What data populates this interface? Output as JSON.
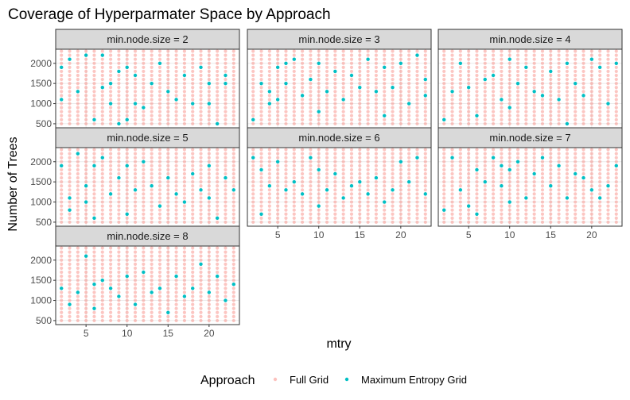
{
  "chart_data": {
    "type": "scatter",
    "title": "Coverage of Hyperparmater Space by Approach",
    "xlabel": "mtry",
    "ylabel": "Number of Trees",
    "xlim": [
      1.3,
      23.7
    ],
    "ylim": [
      400,
      2350
    ],
    "x_ticks": [
      5,
      10,
      15,
      20
    ],
    "y_ticks": [
      500,
      1000,
      1500,
      2000
    ],
    "facet_variable": "min.node.size",
    "facets": [
      {
        "label": "min.node.size = 2",
        "value": 2
      },
      {
        "label": "min.node.size = 3",
        "value": 3
      },
      {
        "label": "min.node.size = 4",
        "value": 4
      },
      {
        "label": "min.node.size = 5",
        "value": 5
      },
      {
        "label": "min.node.size = 6",
        "value": 6
      },
      {
        "label": "min.node.size = 7",
        "value": 7
      },
      {
        "label": "min.node.size = 8",
        "value": 8
      }
    ],
    "legend": {
      "title": "Approach",
      "position": "bottom"
    },
    "series": [
      {
        "name": "Full Grid",
        "color": "#F8766D",
        "grid": {
          "mtry": [
            2,
            23,
            1
          ],
          "trees": [
            500,
            2300,
            100
          ]
        }
      },
      {
        "name": "Maximum Entropy Grid",
        "color": "#00BFC4",
        "points_by_facet": {
          "2": [
            [
              2,
              1900
            ],
            [
              2,
              1100
            ],
            [
              3,
              2100
            ],
            [
              4,
              1300
            ],
            [
              5,
              2200
            ],
            [
              6,
              600
            ],
            [
              7,
              2200
            ],
            [
              7,
              1400
            ],
            [
              8,
              1500
            ],
            [
              8,
              1000
            ],
            [
              9,
              1800
            ],
            [
              9,
              500
            ],
            [
              10,
              1900
            ],
            [
              10,
              600
            ],
            [
              11,
              1700
            ],
            [
              11,
              1000
            ],
            [
              12,
              900
            ],
            [
              13,
              1500
            ],
            [
              14,
              2000
            ],
            [
              15,
              1300
            ],
            [
              16,
              1100
            ],
            [
              17,
              1700
            ],
            [
              18,
              1000
            ],
            [
              19,
              1900
            ],
            [
              20,
              1500
            ],
            [
              20,
              1000
            ],
            [
              21,
              500
            ],
            [
              22,
              1700
            ],
            [
              22,
              1500
            ]
          ],
          "3": [
            [
              2,
              600
            ],
            [
              3,
              1500
            ],
            [
              4,
              1300
            ],
            [
              4,
              1000
            ],
            [
              5,
              1900
            ],
            [
              5,
              1100
            ],
            [
              6,
              2000
            ],
            [
              6,
              1500
            ],
            [
              7,
              2100
            ],
            [
              8,
              1200
            ],
            [
              9,
              1600
            ],
            [
              10,
              2000
            ],
            [
              10,
              800
            ],
            [
              11,
              1300
            ],
            [
              12,
              1800
            ],
            [
              13,
              1100
            ],
            [
              14,
              1700
            ],
            [
              15,
              1400
            ],
            [
              16,
              2100
            ],
            [
              17,
              1300
            ],
            [
              18,
              1900
            ],
            [
              18,
              700
            ],
            [
              19,
              1400
            ],
            [
              20,
              2000
            ],
            [
              21,
              1000
            ],
            [
              22,
              2200
            ],
            [
              23,
              1600
            ],
            [
              23,
              1200
            ]
          ],
          "4": [
            [
              2,
              600
            ],
            [
              3,
              1300
            ],
            [
              4,
              2000
            ],
            [
              5,
              1400
            ],
            [
              6,
              700
            ],
            [
              7,
              1600
            ],
            [
              8,
              1700
            ],
            [
              9,
              1100
            ],
            [
              10,
              2100
            ],
            [
              10,
              900
            ],
            [
              11,
              1500
            ],
            [
              12,
              1900
            ],
            [
              13,
              1300
            ],
            [
              14,
              1200
            ],
            [
              15,
              1800
            ],
            [
              16,
              1100
            ],
            [
              17,
              2000
            ],
            [
              17,
              500
            ],
            [
              18,
              1500
            ],
            [
              19,
              1200
            ],
            [
              20,
              2100
            ],
            [
              21,
              1900
            ],
            [
              22,
              1000
            ],
            [
              23,
              2000
            ]
          ],
          "5": [
            [
              2,
              1900
            ],
            [
              3,
              1100
            ],
            [
              3,
              800
            ],
            [
              4,
              2200
            ],
            [
              5,
              1400
            ],
            [
              5,
              1000
            ],
            [
              6,
              1900
            ],
            [
              6,
              600
            ],
            [
              7,
              2100
            ],
            [
              8,
              1200
            ],
            [
              9,
              1600
            ],
            [
              10,
              1900
            ],
            [
              10,
              700
            ],
            [
              11,
              1300
            ],
            [
              12,
              2000
            ],
            [
              13,
              1400
            ],
            [
              14,
              900
            ],
            [
              15,
              1600
            ],
            [
              16,
              1200
            ],
            [
              17,
              1000
            ],
            [
              18,
              1700
            ],
            [
              19,
              1300
            ],
            [
              20,
              1900
            ],
            [
              20,
              1100
            ],
            [
              21,
              600
            ],
            [
              22,
              1600
            ],
            [
              23,
              1300
            ]
          ],
          "6": [
            [
              2,
              2100
            ],
            [
              3,
              1800
            ],
            [
              3,
              700
            ],
            [
              4,
              1400
            ],
            [
              5,
              2000
            ],
            [
              6,
              1300
            ],
            [
              7,
              1500
            ],
            [
              8,
              1200
            ],
            [
              9,
              2100
            ],
            [
              10,
              1800
            ],
            [
              10,
              900
            ],
            [
              11,
              1300
            ],
            [
              12,
              1700
            ],
            [
              13,
              1100
            ],
            [
              14,
              1400
            ],
            [
              15,
              1500
            ],
            [
              16,
              1200
            ],
            [
              17,
              1600
            ],
            [
              18,
              1000
            ],
            [
              19,
              1300
            ],
            [
              20,
              2000
            ],
            [
              21,
              1500
            ],
            [
              22,
              2100
            ],
            [
              23,
              1200
            ]
          ],
          "7": [
            [
              2,
              800
            ],
            [
              3,
              2100
            ],
            [
              4,
              1300
            ],
            [
              5,
              900
            ],
            [
              6,
              1800
            ],
            [
              6,
              700
            ],
            [
              7,
              1500
            ],
            [
              8,
              2100
            ],
            [
              9,
              1900
            ],
            [
              9,
              1400
            ],
            [
              10,
              1800
            ],
            [
              10,
              1000
            ],
            [
              11,
              2000
            ],
            [
              12,
              1100
            ],
            [
              13,
              1700
            ],
            [
              14,
              2100
            ],
            [
              15,
              1400
            ],
            [
              16,
              1900
            ],
            [
              17,
              1100
            ],
            [
              18,
              1700
            ],
            [
              19,
              1600
            ],
            [
              20,
              1300
            ],
            [
              21,
              1100
            ],
            [
              22,
              1400
            ],
            [
              23,
              1900
            ]
          ],
          "8": [
            [
              2,
              1300
            ],
            [
              3,
              900
            ],
            [
              4,
              1200
            ],
            [
              5,
              2100
            ],
            [
              6,
              1400
            ],
            [
              6,
              800
            ],
            [
              7,
              1500
            ],
            [
              8,
              1300
            ],
            [
              9,
              1100
            ],
            [
              10,
              1600
            ],
            [
              11,
              900
            ],
            [
              12,
              1700
            ],
            [
              13,
              1200
            ],
            [
              14,
              1300
            ],
            [
              15,
              700
            ],
            [
              16,
              1600
            ],
            [
              17,
              1100
            ],
            [
              18,
              1300
            ],
            [
              19,
              1900
            ],
            [
              20,
              1200
            ],
            [
              21,
              1600
            ],
            [
              22,
              1000
            ],
            [
              23,
              1400
            ]
          ]
        }
      }
    ]
  }
}
